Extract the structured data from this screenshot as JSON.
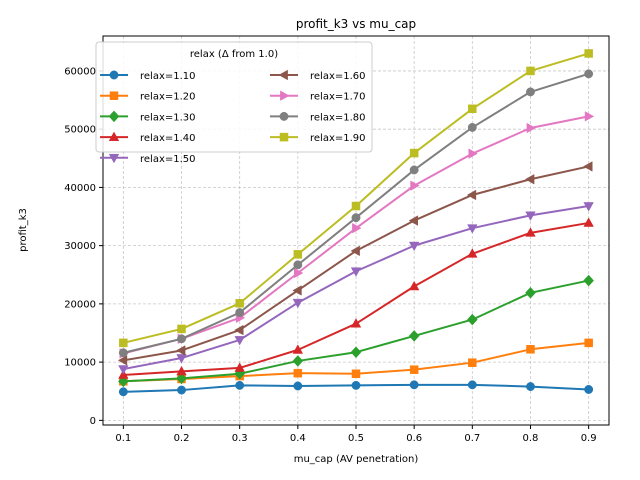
{
  "chart_data": {
    "type": "line",
    "title": "profit_k3 vs mu_cap",
    "xlabel": "mu_cap (AV penetration)",
    "ylabel": "profit_k3",
    "x": [
      0.1,
      0.2,
      0.3,
      0.4,
      0.5,
      0.6,
      0.7,
      0.8,
      0.9
    ],
    "x_tick_labels": [
      "0.1",
      "0.2",
      "0.3",
      "0.4",
      "0.5",
      "0.6",
      "0.7",
      "0.8",
      "0.9"
    ],
    "xlim": [
      0.065,
      0.935
    ],
    "ylim": [
      -800,
      66000
    ],
    "yticks": [
      0,
      10000,
      20000,
      30000,
      40000,
      50000,
      60000
    ],
    "y_tick_labels": [
      "0",
      "10000",
      "20000",
      "30000",
      "40000",
      "50000",
      "60000"
    ],
    "grid": true,
    "legend": {
      "title": "relax (Δ from 1.0)",
      "location": "upper-left",
      "columns": 2
    },
    "series": [
      {
        "name": "relax=1.10",
        "color": "#1f77b4",
        "marker": "circle",
        "values": [
          4900,
          5200,
          6000,
          5900,
          6000,
          6100,
          6100,
          5800,
          5300
        ]
      },
      {
        "name": "relax=1.20",
        "color": "#ff7f0e",
        "marker": "square",
        "values": [
          6700,
          7100,
          7600,
          8100,
          8000,
          8700,
          9900,
          12200,
          13300
        ]
      },
      {
        "name": "relax=1.30",
        "color": "#2ca02c",
        "marker": "diamond",
        "values": [
          6700,
          7200,
          8000,
          10200,
          11700,
          14500,
          17300,
          21900,
          24000
        ]
      },
      {
        "name": "relax=1.40",
        "color": "#d62728",
        "marker": "triangle-up",
        "values": [
          7800,
          8400,
          9000,
          12100,
          16600,
          23000,
          28600,
          32200,
          33900
        ]
      },
      {
        "name": "relax=1.50",
        "color": "#9467bd",
        "marker": "triangle-down",
        "values": [
          8800,
          10700,
          13800,
          20200,
          25600,
          30000,
          33000,
          35200,
          36800
        ]
      },
      {
        "name": "relax=1.60",
        "color": "#8c564b",
        "marker": "triangle-left",
        "values": [
          10300,
          12000,
          15500,
          22300,
          29100,
          34300,
          38700,
          41400,
          43600
        ]
      },
      {
        "name": "relax=1.70",
        "color": "#e377c2",
        "marker": "triangle-right",
        "values": [
          11500,
          14000,
          17600,
          25300,
          33000,
          40300,
          45800,
          50200,
          52200
        ]
      },
      {
        "name": "relax=1.80",
        "color": "#7f7f7f",
        "marker": "circle",
        "values": [
          11600,
          14000,
          18500,
          26700,
          34800,
          43000,
          50300,
          56400,
          59500
        ]
      },
      {
        "name": "relax=1.90",
        "color": "#bcbd22",
        "marker": "square",
        "values": [
          13300,
          15700,
          20100,
          28500,
          36800,
          45900,
          53500,
          60000,
          63000
        ]
      }
    ]
  }
}
